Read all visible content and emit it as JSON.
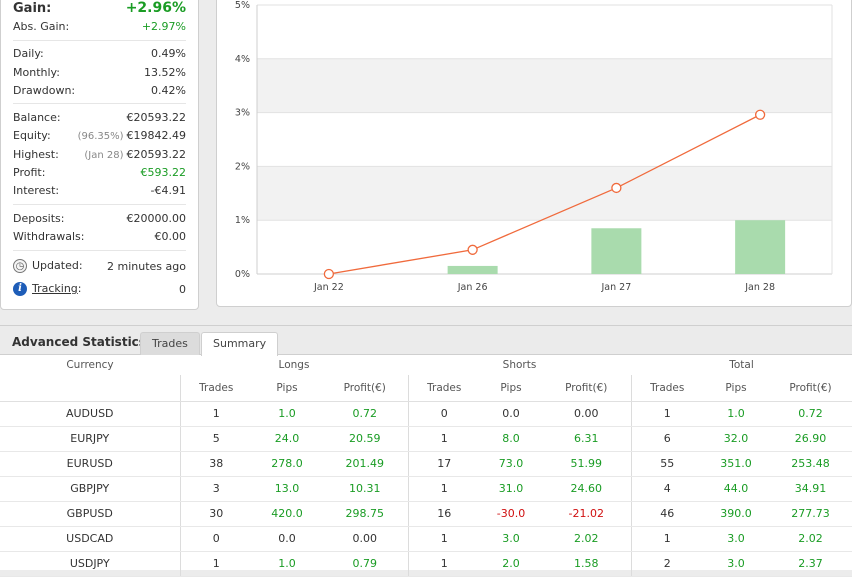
{
  "stats": {
    "gain": {
      "label": "Gain:",
      "value": "+2.96%"
    },
    "abs_gain": {
      "label": "Abs. Gain:",
      "value": "+2.97%"
    },
    "daily": {
      "label": "Daily:",
      "value": "0.49%"
    },
    "monthly": {
      "label": "Monthly:",
      "value": "13.52%"
    },
    "drawdown": {
      "label": "Drawdown:",
      "value": "0.42%"
    },
    "balance": {
      "label": "Balance:",
      "value": "€20593.22"
    },
    "equity": {
      "label": "Equity:",
      "note": "(96.35%)",
      "value": "€19842.49"
    },
    "highest": {
      "label": "Highest:",
      "note": "(Jan 28)",
      "value": "€20593.22"
    },
    "profit": {
      "label": "Profit:",
      "value": "€593.22"
    },
    "interest": {
      "label": "Interest:",
      "value": "-€4.91"
    },
    "deposits": {
      "label": "Deposits:",
      "value": "€20000.00"
    },
    "withdrawals": {
      "label": "Withdrawals:",
      "value": "€0.00"
    },
    "updated": {
      "label": "Updated:",
      "value": "2 minutes ago"
    },
    "tracking": {
      "label": "Tracking",
      "colon": ":",
      "value": "0"
    }
  },
  "chart_data": {
    "type": "line",
    "categories": [
      "Jan 22",
      "Jan 26",
      "Jan 27",
      "Jan 28"
    ],
    "series": [
      {
        "type": "line",
        "values": [
          0,
          0.45,
          1.6,
          2.96
        ],
        "color": "#f06a3c"
      },
      {
        "type": "bar",
        "values": [
          0,
          0.15,
          0.85,
          1.0
        ],
        "color": "#a9dbad"
      }
    ],
    "yticks": [
      "0%",
      "1%",
      "2%",
      "3%",
      "4%",
      "5%"
    ],
    "ylim": [
      0,
      5
    ],
    "grid": true
  },
  "advanced": {
    "title": "Advanced Statistics",
    "tabs": [
      {
        "label": "Trades"
      },
      {
        "label": "Summary"
      }
    ],
    "active_tab": "Summary",
    "groups": {
      "currency": "Currency",
      "longs": "Longs",
      "shorts": "Shorts",
      "total": "Total"
    },
    "subheaders": {
      "trades": "Trades",
      "pips": "Pips",
      "profit": "Profit(€)"
    },
    "rows": [
      {
        "currency": "AUDUSD",
        "l_trades": "1",
        "l_pips": "1.0",
        "l_profit": "0.72",
        "s_trades": "0",
        "s_pips": "0.0",
        "s_profit": "0.00",
        "t_trades": "1",
        "t_pips": "1.0",
        "t_profit": "0.72"
      },
      {
        "currency": "EURJPY",
        "l_trades": "5",
        "l_pips": "24.0",
        "l_profit": "20.59",
        "s_trades": "1",
        "s_pips": "8.0",
        "s_profit": "6.31",
        "t_trades": "6",
        "t_pips": "32.0",
        "t_profit": "26.90"
      },
      {
        "currency": "EURUSD",
        "l_trades": "38",
        "l_pips": "278.0",
        "l_profit": "201.49",
        "s_trades": "17",
        "s_pips": "73.0",
        "s_profit": "51.99",
        "t_trades": "55",
        "t_pips": "351.0",
        "t_profit": "253.48"
      },
      {
        "currency": "GBPJPY",
        "l_trades": "3",
        "l_pips": "13.0",
        "l_profit": "10.31",
        "s_trades": "1",
        "s_pips": "31.0",
        "s_profit": "24.60",
        "t_trades": "4",
        "t_pips": "44.0",
        "t_profit": "34.91"
      },
      {
        "currency": "GBPUSD",
        "l_trades": "30",
        "l_pips": "420.0",
        "l_profit": "298.75",
        "s_trades": "16",
        "s_pips": "-30.0",
        "s_profit": "-21.02",
        "t_trades": "46",
        "t_pips": "390.0",
        "t_profit": "277.73"
      },
      {
        "currency": "USDCAD",
        "l_trades": "0",
        "l_pips": "0.0",
        "l_profit": "0.00",
        "s_trades": "1",
        "s_pips": "3.0",
        "s_profit": "2.02",
        "t_trades": "1",
        "t_pips": "3.0",
        "t_profit": "2.02"
      },
      {
        "currency": "USDJPY",
        "l_trades": "1",
        "l_pips": "1.0",
        "l_profit": "0.79",
        "s_trades": "1",
        "s_pips": "2.0",
        "s_profit": "1.58",
        "t_trades": "2",
        "t_pips": "3.0",
        "t_profit": "2.37"
      }
    ]
  }
}
